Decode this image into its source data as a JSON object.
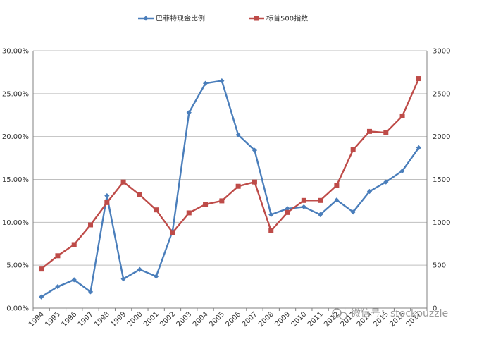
{
  "chart_data": {
    "type": "line",
    "title": "",
    "xlabel": "",
    "ylabel_left": "",
    "ylabel_right": "",
    "categories": [
      "1994",
      "1995",
      "1996",
      "1997",
      "1998",
      "1999",
      "2000",
      "2001",
      "2002",
      "2003",
      "2004",
      "2005",
      "2006",
      "2007",
      "2008",
      "2009",
      "2010",
      "2011",
      "2012",
      "2013",
      "2014",
      "2015",
      "2016",
      "2017"
    ],
    "y_left": {
      "min": 0,
      "max": 0.3,
      "ticks": [
        0,
        0.05,
        0.1,
        0.15,
        0.2,
        0.25,
        0.3
      ],
      "tick_labels": [
        "0.00%",
        "5.00%",
        "10.00%",
        "15.00%",
        "20.00%",
        "25.00%",
        "30.00%"
      ]
    },
    "y_right": {
      "min": 0,
      "max": 3000,
      "ticks": [
        0,
        500,
        1000,
        1500,
        2000,
        2500,
        3000
      ],
      "tick_labels": [
        "0",
        "500",
        "1000",
        "1500",
        "2000",
        "2500",
        "3000"
      ]
    },
    "grid": true,
    "legend_position": "top",
    "series": [
      {
        "name": "巴菲特现金比例",
        "axis": "left",
        "color": "#4a7ebb",
        "marker": "diamond",
        "values": [
          0.013,
          0.025,
          0.033,
          0.019,
          0.131,
          0.034,
          0.045,
          0.037,
          0.09,
          0.228,
          0.262,
          0.265,
          0.202,
          0.184,
          0.109,
          0.116,
          0.118,
          0.109,
          0.126,
          0.112,
          0.136,
          0.147,
          0.16,
          0.187
        ]
      },
      {
        "name": "标普500指数",
        "axis": "right",
        "color": "#be4b48",
        "marker": "square",
        "values": [
          455,
          610,
          740,
          970,
          1230,
          1470,
          1320,
          1145,
          880,
          1110,
          1210,
          1250,
          1420,
          1470,
          900,
          1115,
          1255,
          1255,
          1430,
          1845,
          2060,
          2045,
          2240,
          2675
        ]
      }
    ]
  },
  "watermark": {
    "text": "微信号：stockpuzzle"
  }
}
